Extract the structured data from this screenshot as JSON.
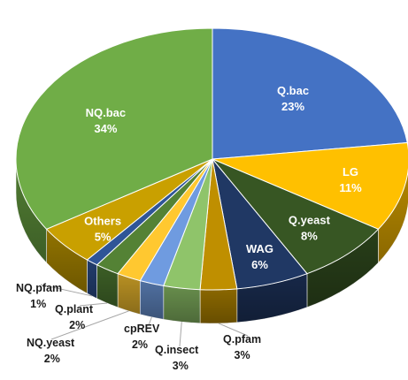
{
  "chart_data": {
    "type": "pie",
    "style": "3d",
    "title": "",
    "legend": "none",
    "slices": [
      {
        "label": "Q.bac",
        "pct_label": "23%",
        "value": 23,
        "color": "#4472C4",
        "label_pos": "inside"
      },
      {
        "label": "LG",
        "pct_label": "11%",
        "value": 11,
        "color": "#FFC000",
        "label_pos": "inside"
      },
      {
        "label": "Q.yeast",
        "pct_label": "8%",
        "value": 8,
        "color": "#375623",
        "label_pos": "inside"
      },
      {
        "label": "WAG",
        "pct_label": "6%",
        "value": 6,
        "color": "#203864",
        "label_pos": "inside"
      },
      {
        "label": "Q.pfam",
        "pct_label": "3%",
        "value": 3,
        "color": "#BF8F00",
        "label_pos": "outside"
      },
      {
        "label": "Q.insect",
        "pct_label": "3%",
        "value": 3,
        "color": "#8FC46A",
        "label_pos": "outside"
      },
      {
        "label": "cpREV",
        "pct_label": "2%",
        "value": 2,
        "color": "#6F9BE0",
        "label_pos": "outside"
      },
      {
        "label": "NQ.yeast",
        "pct_label": "2%",
        "value": 2,
        "color": "#FFC830",
        "label_pos": "outside"
      },
      {
        "label": "Q.plant",
        "pct_label": "2%",
        "value": 2,
        "color": "#548235",
        "label_pos": "outside"
      },
      {
        "label": "NQ.pfam",
        "pct_label": "1%",
        "value": 1,
        "color": "#2F5597",
        "label_pos": "outside"
      },
      {
        "label": "Others",
        "pct_label": "5%",
        "value": 5,
        "color": "#C9A000",
        "label_pos": "inside"
      },
      {
        "label": "NQ.bac",
        "pct_label": "34%",
        "value": 34,
        "color": "#70AD47",
        "label_pos": "inside"
      }
    ]
  }
}
